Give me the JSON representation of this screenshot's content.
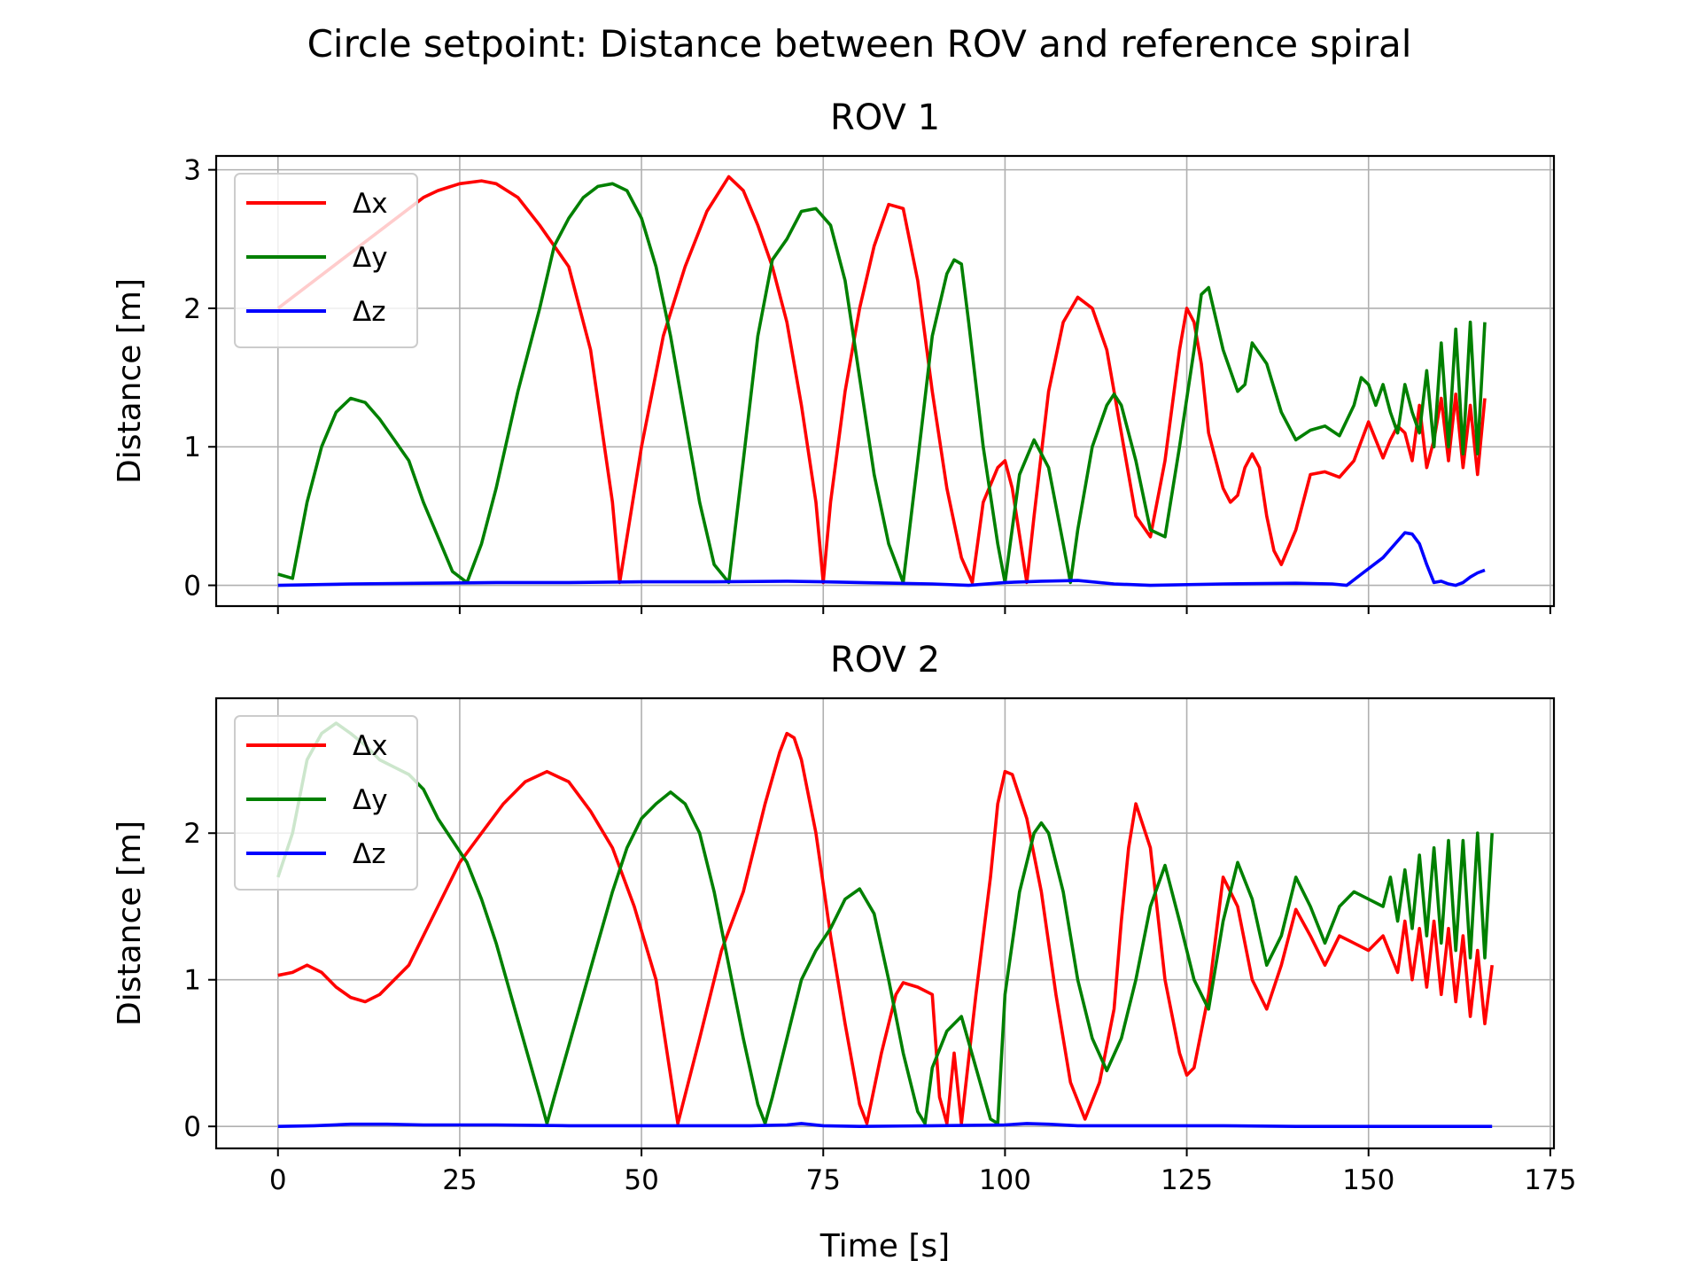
{
  "figure": {
    "title": "Circle setpoint: Distance between ROV and reference spiral"
  },
  "chart_data": [
    {
      "type": "line",
      "title": "ROV 1",
      "xlabel": "",
      "ylabel": "Distance [m]",
      "xlim": [
        -8.5,
        175.5
      ],
      "ylim": [
        -0.15,
        3.1
      ],
      "xticks": [
        0,
        25,
        50,
        75,
        100,
        125,
        150,
        175
      ],
      "yticks": [
        0,
        1,
        2,
        3
      ],
      "grid": true,
      "legend_position": "upper-left",
      "series": [
        {
          "name": "Δx",
          "color": "#ff0000",
          "x": [
            0,
            5,
            10,
            15,
            18,
            20,
            22,
            25,
            28,
            30,
            33,
            36,
            40,
            43,
            46,
            47,
            50,
            53,
            56,
            59,
            62,
            64,
            66,
            68,
            70,
            72,
            74,
            75,
            76,
            78,
            80,
            82,
            84,
            86,
            88,
            90,
            92,
            94,
            95.5,
            97,
            99,
            100,
            101,
            103,
            104,
            106,
            108,
            110,
            112,
            114,
            116,
            118,
            120,
            122,
            124,
            125,
            126,
            127,
            128,
            130,
            131,
            132,
            133,
            134,
            135,
            136,
            137,
            138,
            140,
            142,
            144,
            146,
            148,
            150,
            151,
            152,
            153,
            154,
            155,
            156,
            157,
            158,
            159,
            160,
            161,
            162,
            163,
            164,
            165,
            166
          ],
          "y": [
            2.0,
            2.2,
            2.4,
            2.6,
            2.72,
            2.8,
            2.85,
            2.9,
            2.92,
            2.9,
            2.8,
            2.6,
            2.3,
            1.7,
            0.6,
            0.02,
            1.0,
            1.8,
            2.3,
            2.7,
            2.95,
            2.85,
            2.6,
            2.3,
            1.9,
            1.3,
            0.6,
            0.02,
            0.6,
            1.4,
            2.0,
            2.45,
            2.75,
            2.72,
            2.2,
            1.4,
            0.7,
            0.2,
            0.02,
            0.6,
            0.85,
            0.9,
            0.7,
            0.02,
            0.5,
            1.4,
            1.9,
            2.08,
            2.0,
            1.7,
            1.1,
            0.5,
            0.35,
            0.9,
            1.7,
            2.0,
            1.9,
            1.6,
            1.1,
            0.7,
            0.6,
            0.65,
            0.85,
            0.95,
            0.85,
            0.5,
            0.25,
            0.15,
            0.4,
            0.8,
            0.82,
            0.78,
            0.9,
            1.18,
            1.05,
            0.92,
            1.05,
            1.15,
            1.1,
            0.9,
            1.3,
            0.85,
            1.05,
            1.35,
            0.9,
            1.38,
            0.85,
            1.3,
            0.8,
            1.35
          ]
        },
        {
          "name": "Δy",
          "color": "#008000",
          "x": [
            0,
            2,
            4,
            6,
            8,
            10,
            12,
            14,
            16,
            18,
            20,
            22,
            24,
            26,
            28,
            30,
            33,
            36,
            38,
            40,
            42,
            44,
            46,
            48,
            50,
            52,
            54,
            56,
            58,
            60,
            62,
            64,
            66,
            68,
            70,
            72,
            74,
            76,
            78,
            80,
            82,
            84,
            86,
            88,
            90,
            92,
            93,
            94,
            95,
            97,
            99,
            100,
            102,
            104,
            106,
            108,
            109,
            110,
            112,
            114,
            115,
            116,
            118,
            120,
            122,
            124,
            126,
            127,
            128,
            130,
            132,
            133,
            134,
            136,
            138,
            140,
            142,
            144,
            146,
            148,
            149,
            150,
            151,
            152,
            153,
            154,
            155,
            156,
            157,
            158,
            159,
            160,
            161,
            162,
            163,
            164,
            165,
            166
          ],
          "y": [
            0.08,
            0.05,
            0.6,
            1.0,
            1.25,
            1.35,
            1.32,
            1.2,
            1.05,
            0.9,
            0.6,
            0.35,
            0.1,
            0.02,
            0.3,
            0.7,
            1.4,
            2.0,
            2.45,
            2.65,
            2.8,
            2.88,
            2.9,
            2.85,
            2.65,
            2.3,
            1.8,
            1.2,
            0.6,
            0.15,
            0.02,
            0.9,
            1.8,
            2.35,
            2.5,
            2.7,
            2.72,
            2.6,
            2.2,
            1.5,
            0.8,
            0.3,
            0.02,
            0.9,
            1.8,
            2.25,
            2.35,
            2.32,
            1.9,
            1.0,
            0.3,
            0.02,
            0.8,
            1.05,
            0.85,
            0.3,
            0.02,
            0.4,
            1.0,
            1.3,
            1.38,
            1.3,
            0.9,
            0.4,
            0.35,
            1.0,
            1.7,
            2.1,
            2.15,
            1.7,
            1.4,
            1.45,
            1.75,
            1.6,
            1.25,
            1.05,
            1.12,
            1.15,
            1.08,
            1.3,
            1.5,
            1.45,
            1.3,
            1.45,
            1.25,
            1.1,
            1.45,
            1.25,
            1.1,
            1.55,
            1.0,
            1.75,
            1.0,
            1.85,
            0.95,
            1.9,
            0.95,
            1.9
          ]
        },
        {
          "name": "Δz",
          "color": "#0000ff",
          "x": [
            0,
            10,
            20,
            30,
            40,
            50,
            60,
            70,
            75,
            80,
            90,
            95,
            100,
            105,
            110,
            115,
            120,
            130,
            140,
            145,
            147,
            149,
            152,
            154,
            155,
            156,
            157,
            158,
            159,
            160,
            161,
            162,
            163,
            164,
            165,
            166
          ],
          "y": [
            0.0,
            0.01,
            0.015,
            0.02,
            0.02,
            0.025,
            0.025,
            0.03,
            0.025,
            0.02,
            0.01,
            0.0,
            0.02,
            0.03,
            0.035,
            0.01,
            0.0,
            0.01,
            0.015,
            0.01,
            0.0,
            0.08,
            0.2,
            0.32,
            0.38,
            0.37,
            0.3,
            0.15,
            0.02,
            0.03,
            0.01,
            0.0,
            0.02,
            0.06,
            0.09,
            0.11
          ]
        }
      ]
    },
    {
      "type": "line",
      "title": "ROV 2",
      "xlabel": "Time [s]",
      "ylabel": "Distance [m]",
      "xlim": [
        -8.5,
        175.5
      ],
      "ylim": [
        -0.15,
        2.92
      ],
      "xticks": [
        0,
        25,
        50,
        75,
        100,
        125,
        150,
        175
      ],
      "xtick_labels": [
        "0",
        "25",
        "50",
        "75",
        "100",
        "125",
        "150",
        "175"
      ],
      "yticks": [
        0,
        1,
        2
      ],
      "grid": true,
      "legend_position": "upper-left",
      "series": [
        {
          "name": "Δx",
          "color": "#ff0000",
          "x": [
            0,
            2,
            4,
            6,
            8,
            10,
            12,
            14,
            16,
            18,
            20,
            22,
            25,
            28,
            31,
            34,
            37,
            40,
            43,
            46,
            49,
            52,
            55,
            58,
            61,
            64,
            67,
            69,
            70,
            71,
            72,
            74,
            76,
            78,
            80,
            81,
            83,
            85,
            86,
            88,
            90,
            91,
            92,
            93,
            94,
            96,
            98,
            99,
            100,
            101,
            103,
            105,
            107,
            109,
            111,
            113,
            115,
            116,
            117,
            118,
            120,
            122,
            124,
            125,
            126,
            128,
            129,
            130,
            132,
            134,
            136,
            138,
            140,
            142,
            144,
            146,
            148,
            150,
            152,
            154,
            155,
            156,
            157,
            158,
            159,
            160,
            161,
            162,
            163,
            164,
            165,
            166,
            167
          ],
          "y": [
            1.03,
            1.05,
            1.1,
            1.05,
            0.95,
            0.88,
            0.85,
            0.9,
            1.0,
            1.1,
            1.3,
            1.5,
            1.8,
            2.0,
            2.2,
            2.35,
            2.42,
            2.35,
            2.15,
            1.9,
            1.5,
            1.0,
            0.02,
            0.6,
            1.2,
            1.6,
            2.2,
            2.55,
            2.68,
            2.65,
            2.5,
            2.0,
            1.3,
            0.7,
            0.15,
            0.02,
            0.5,
            0.9,
            0.98,
            0.95,
            0.9,
            0.2,
            0.02,
            0.5,
            0.02,
            0.9,
            1.7,
            2.2,
            2.42,
            2.4,
            2.1,
            1.6,
            0.9,
            0.3,
            0.05,
            0.3,
            0.8,
            1.4,
            1.9,
            2.2,
            1.9,
            1.0,
            0.5,
            0.35,
            0.4,
            0.9,
            1.3,
            1.7,
            1.5,
            1.0,
            0.8,
            1.1,
            1.48,
            1.3,
            1.1,
            1.3,
            1.25,
            1.2,
            1.3,
            1.05,
            1.4,
            1.0,
            1.35,
            0.95,
            1.4,
            0.9,
            1.35,
            0.85,
            1.3,
            0.75,
            1.2,
            0.7,
            1.1
          ]
        },
        {
          "name": "Δy",
          "color": "#008000",
          "x": [
            0,
            2,
            4,
            6,
            8,
            10,
            12,
            14,
            16,
            18,
            20,
            22,
            24,
            26,
            28,
            30,
            32,
            34,
            36,
            37,
            38,
            40,
            42,
            44,
            46,
            48,
            50,
            52,
            54,
            56,
            58,
            60,
            62,
            64,
            66,
            67,
            68,
            70,
            72,
            74,
            76,
            78,
            80,
            82,
            84,
            86,
            88,
            89,
            90,
            92,
            94,
            96,
            98,
            99,
            100,
            102,
            104,
            105,
            106,
            108,
            110,
            112,
            114,
            116,
            118,
            120,
            122,
            124,
            126,
            128,
            130,
            132,
            134,
            136,
            138,
            140,
            142,
            144,
            146,
            148,
            150,
            152,
            153,
            154,
            155,
            156,
            157,
            158,
            159,
            160,
            161,
            162,
            163,
            164,
            165,
            166,
            167
          ],
          "y": [
            1.7,
            2.0,
            2.5,
            2.68,
            2.75,
            2.68,
            2.6,
            2.5,
            2.45,
            2.4,
            2.3,
            2.1,
            1.95,
            1.8,
            1.55,
            1.25,
            0.9,
            0.55,
            0.2,
            0.02,
            0.2,
            0.55,
            0.9,
            1.25,
            1.6,
            1.9,
            2.1,
            2.2,
            2.28,
            2.2,
            2.0,
            1.6,
            1.1,
            0.6,
            0.15,
            0.02,
            0.2,
            0.6,
            1.0,
            1.2,
            1.35,
            1.55,
            1.62,
            1.45,
            1.0,
            0.5,
            0.1,
            0.02,
            0.4,
            0.65,
            0.75,
            0.4,
            0.05,
            0.02,
            0.9,
            1.6,
            2.0,
            2.07,
            2.0,
            1.6,
            1.0,
            0.6,
            0.38,
            0.6,
            1.0,
            1.5,
            1.78,
            1.4,
            1.0,
            0.8,
            1.4,
            1.8,
            1.55,
            1.1,
            1.3,
            1.7,
            1.5,
            1.25,
            1.5,
            1.6,
            1.55,
            1.5,
            1.7,
            1.4,
            1.75,
            1.35,
            1.85,
            1.3,
            1.9,
            1.25,
            1.95,
            1.2,
            1.95,
            1.15,
            2.0,
            1.15,
            2.0
          ]
        },
        {
          "name": "Δz",
          "color": "#0000ff",
          "x": [
            0,
            5,
            10,
            15,
            20,
            30,
            40,
            50,
            60,
            65,
            70,
            72,
            75,
            80,
            90,
            100,
            103,
            106,
            110,
            120,
            130,
            140,
            150,
            160,
            167
          ],
          "y": [
            0.0,
            0.005,
            0.015,
            0.015,
            0.01,
            0.01,
            0.005,
            0.005,
            0.005,
            0.005,
            0.01,
            0.02,
            0.005,
            0.0,
            0.005,
            0.01,
            0.02,
            0.015,
            0.005,
            0.005,
            0.005,
            0.0,
            0.0,
            0.0,
            0.0
          ]
        }
      ]
    }
  ]
}
